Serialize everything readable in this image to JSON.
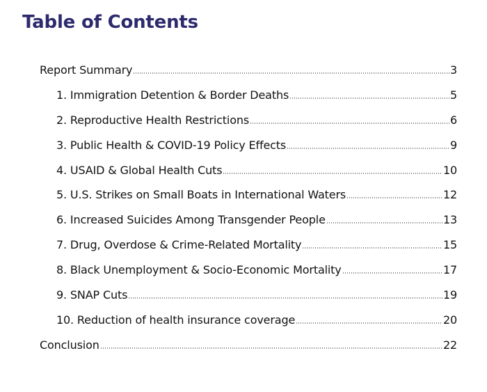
{
  "colors": {
    "title": "#2d2a6e",
    "text": "#111111",
    "background": "#ffffff"
  },
  "toc": {
    "title": "Table of Contents",
    "entries": [
      {
        "label": "Report Summary",
        "page": "3",
        "level": 0
      },
      {
        "label": "1. Immigration Detention & Border Deaths",
        "page": "5",
        "level": 1
      },
      {
        "label": "2. Reproductive Health Restrictions",
        "page": "6",
        "level": 1
      },
      {
        "label": "3. Public Health & COVID-19 Policy Effects",
        "page": "9",
        "level": 1
      },
      {
        "label": "4. USAID & Global Health Cuts",
        "page": "10",
        "level": 1
      },
      {
        "label": "5. U.S. Strikes on Small Boats in International Waters",
        "page": "12",
        "level": 1
      },
      {
        "label": "6. Increased Suicides Among Transgender People",
        "page": "13",
        "level": 1
      },
      {
        "label": "7. Drug, Overdose & Crime-Related Mortality",
        "page": "15",
        "level": 1
      },
      {
        "label": "8. Black Unemployment & Socio-Economic Mortality",
        "page": "17",
        "level": 1
      },
      {
        "label": "9. SNAP Cuts",
        "page": "19",
        "level": 1
      },
      {
        "label": "10. Reduction of health insurance coverage",
        "page": "20",
        "level": 1
      },
      {
        "label": "Conclusion",
        "page": "22",
        "level": 0
      }
    ]
  }
}
